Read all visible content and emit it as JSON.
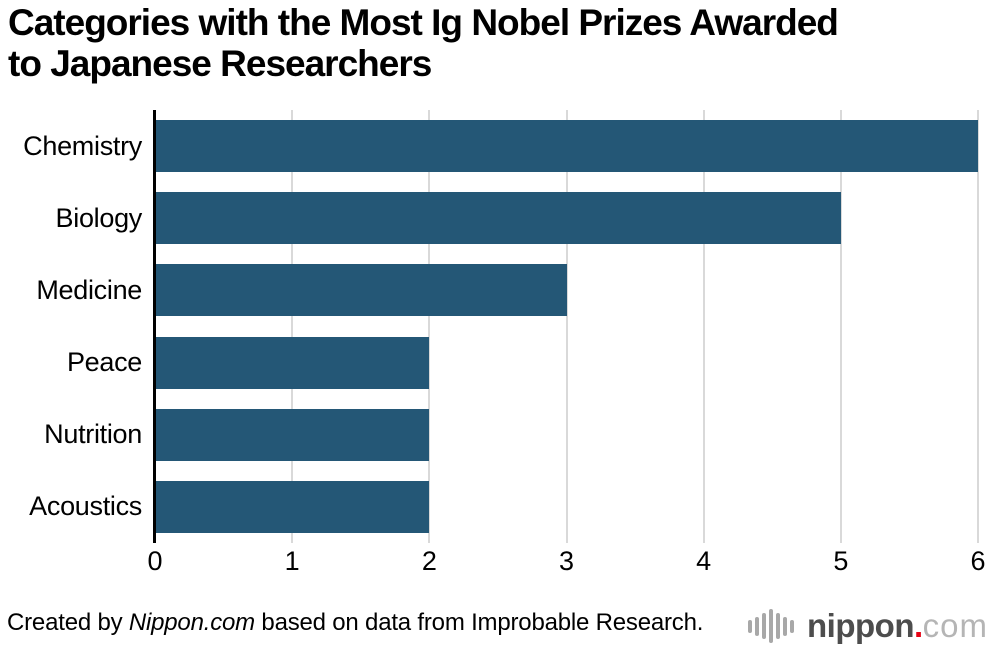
{
  "title": {
    "line1": "Categories with the Most Ig Nobel Prizes Awarded",
    "line2": "to Japanese Researchers"
  },
  "chart_data": {
    "type": "bar",
    "orientation": "horizontal",
    "title": "Categories with the Most Ig Nobel Prizes Awarded to Japanese Researchers",
    "categories": [
      "Chemistry",
      "Biology",
      "Medicine",
      "Peace",
      "Nutrition",
      "Acoustics"
    ],
    "values": [
      6,
      5,
      3,
      2,
      2,
      2
    ],
    "xlabel": "",
    "ylabel": "",
    "xlim": [
      0,
      6
    ],
    "x_ticks": [
      0,
      1,
      2,
      3,
      4,
      5,
      6
    ],
    "grid": "vertical gridlines on",
    "legend": "none",
    "bar_color": "#245776",
    "gridline_color": "#d9d9d9",
    "axis_color": "#000000"
  },
  "footer": {
    "credit_prefix": "Created by ",
    "credit_source": "Nippon.com",
    "credit_suffix": " based on data from Improbable Research.",
    "logo": {
      "name": "nippon.com",
      "text_main": "nippon",
      "text_dot": ".",
      "text_tld": "com",
      "main_color": "#4d4d4d",
      "dot_color": "#e60012",
      "tld_color": "#b5b5b5",
      "icon_color": "#a8a8a8",
      "icon_bar_heights": [
        13,
        19,
        26,
        34,
        26,
        19,
        13
      ]
    }
  }
}
